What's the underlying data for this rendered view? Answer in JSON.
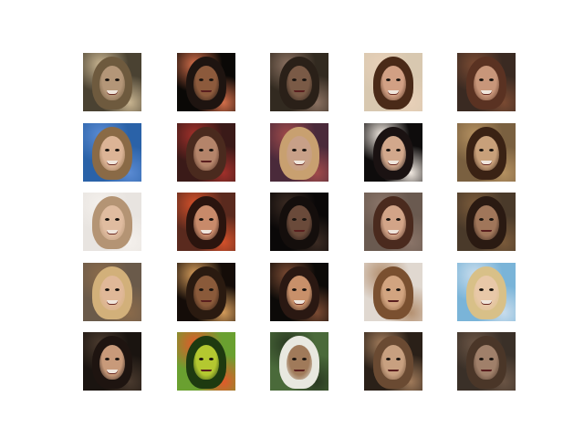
{
  "grid": {
    "rows": 5,
    "cols": 5,
    "cells": [
      {
        "bg": "#4a4232",
        "skin": "#b49678",
        "hair": "#6e5a3e",
        "smile": true,
        "noise": "#c8b490"
      },
      {
        "bg": "#0a0806",
        "skin": "#8c5a3c",
        "hair": "#1e1410",
        "smile": false,
        "noise": "#d26e4a"
      },
      {
        "bg": "#322a20",
        "skin": "#7a5a46",
        "hair": "#2a2018",
        "smile": false,
        "noise": "#8a7060"
      },
      {
        "bg": "#d8c8b0",
        "skin": "#d2a084",
        "hair": "#4a2a18",
        "smile": true,
        "noise": "#e8d0b8"
      },
      {
        "bg": "#3a2a22",
        "skin": "#c8967a",
        "hair": "#5a3222",
        "smile": true,
        "noise": "#7a4a32"
      },
      {
        "bg": "#2a62a8",
        "skin": "#dcb496",
        "hair": "#8a6a46",
        "smile": true,
        "noise": "#5a8ad2"
      },
      {
        "bg": "#3a1a18",
        "skin": "#b4846a",
        "hair": "#4a2a1e",
        "smile": false,
        "noise": "#a0302a"
      },
      {
        "bg": "#4a2a3a",
        "skin": "#c8a088",
        "hair": "#c8a070",
        "smile": true,
        "noise": "#a04a4a"
      },
      {
        "bg": "#0e0c0c",
        "skin": "#d2a88c",
        "hair": "#1a1212",
        "smile": true,
        "noise": "#f0e8e0"
      },
      {
        "bg": "#7a6040",
        "skin": "#c8a07a",
        "hair": "#3a2214",
        "smile": true,
        "noise": "#b49060"
      },
      {
        "bg": "#e8e4e0",
        "skin": "#e0bca0",
        "hair": "#b49474",
        "smile": true,
        "noise": "#f4f0ec"
      },
      {
        "bg": "#5a2a1e",
        "skin": "#c88a6a",
        "hair": "#2a140e",
        "smile": true,
        "noise": "#d2502a"
      },
      {
        "bg": "#0a0808",
        "skin": "#6a4a3a",
        "hair": "#140e0c",
        "smile": false,
        "noise": "#3a2a22"
      },
      {
        "bg": "#6a5a50",
        "skin": "#d2a488",
        "hair": "#4a2a1e",
        "smile": true,
        "noise": "#8a7468"
      },
      {
        "bg": "#4a3a2a",
        "skin": "#a0765a",
        "hair": "#2a1a12",
        "smile": false,
        "noise": "#7a5a3a"
      },
      {
        "bg": "#6a5a4a",
        "skin": "#e0b898",
        "hair": "#d2b07a",
        "smile": true,
        "noise": "#8a6a4a"
      },
      {
        "bg": "#140c08",
        "skin": "#8a5a3a",
        "hair": "#2a1a10",
        "smile": false,
        "noise": "#d29a5a"
      },
      {
        "bg": "#0c0a08",
        "skin": "#c8906a",
        "hair": "#2a1812",
        "smile": true,
        "noise": "#7a4a32"
      },
      {
        "bg": "#e0d8d0",
        "skin": "#d2a480",
        "hair": "#7a5030",
        "smile": false,
        "noise": "#b49070"
      },
      {
        "bg": "#7ab4d8",
        "skin": "#e8c8a8",
        "hair": "#d8c088",
        "smile": true,
        "noise": "#c8dcec"
      },
      {
        "bg": "#1a1410",
        "skin": "#c89a7a",
        "hair": "#1e1410",
        "smile": true,
        "noise": "#4a3a2e"
      },
      {
        "bg": "#6aa030",
        "skin": "#b4c830",
        "hair": "#1e3a10",
        "smile": false,
        "noise": "#e05a2a"
      },
      {
        "bg": "#4a6a3a",
        "skin": "#a07a5a",
        "hair": "#e8e8e0",
        "smile": false,
        "noise": "#2a3a22"
      },
      {
        "bg": "#2a2018",
        "skin": "#c8a080",
        "hair": "#6a4a32",
        "smile": false,
        "noise": "#a07a5a"
      },
      {
        "bg": "#3a3028",
        "skin": "#a0806a",
        "hair": "#4a3628",
        "smile": false,
        "noise": "#6a5444"
      }
    ]
  }
}
